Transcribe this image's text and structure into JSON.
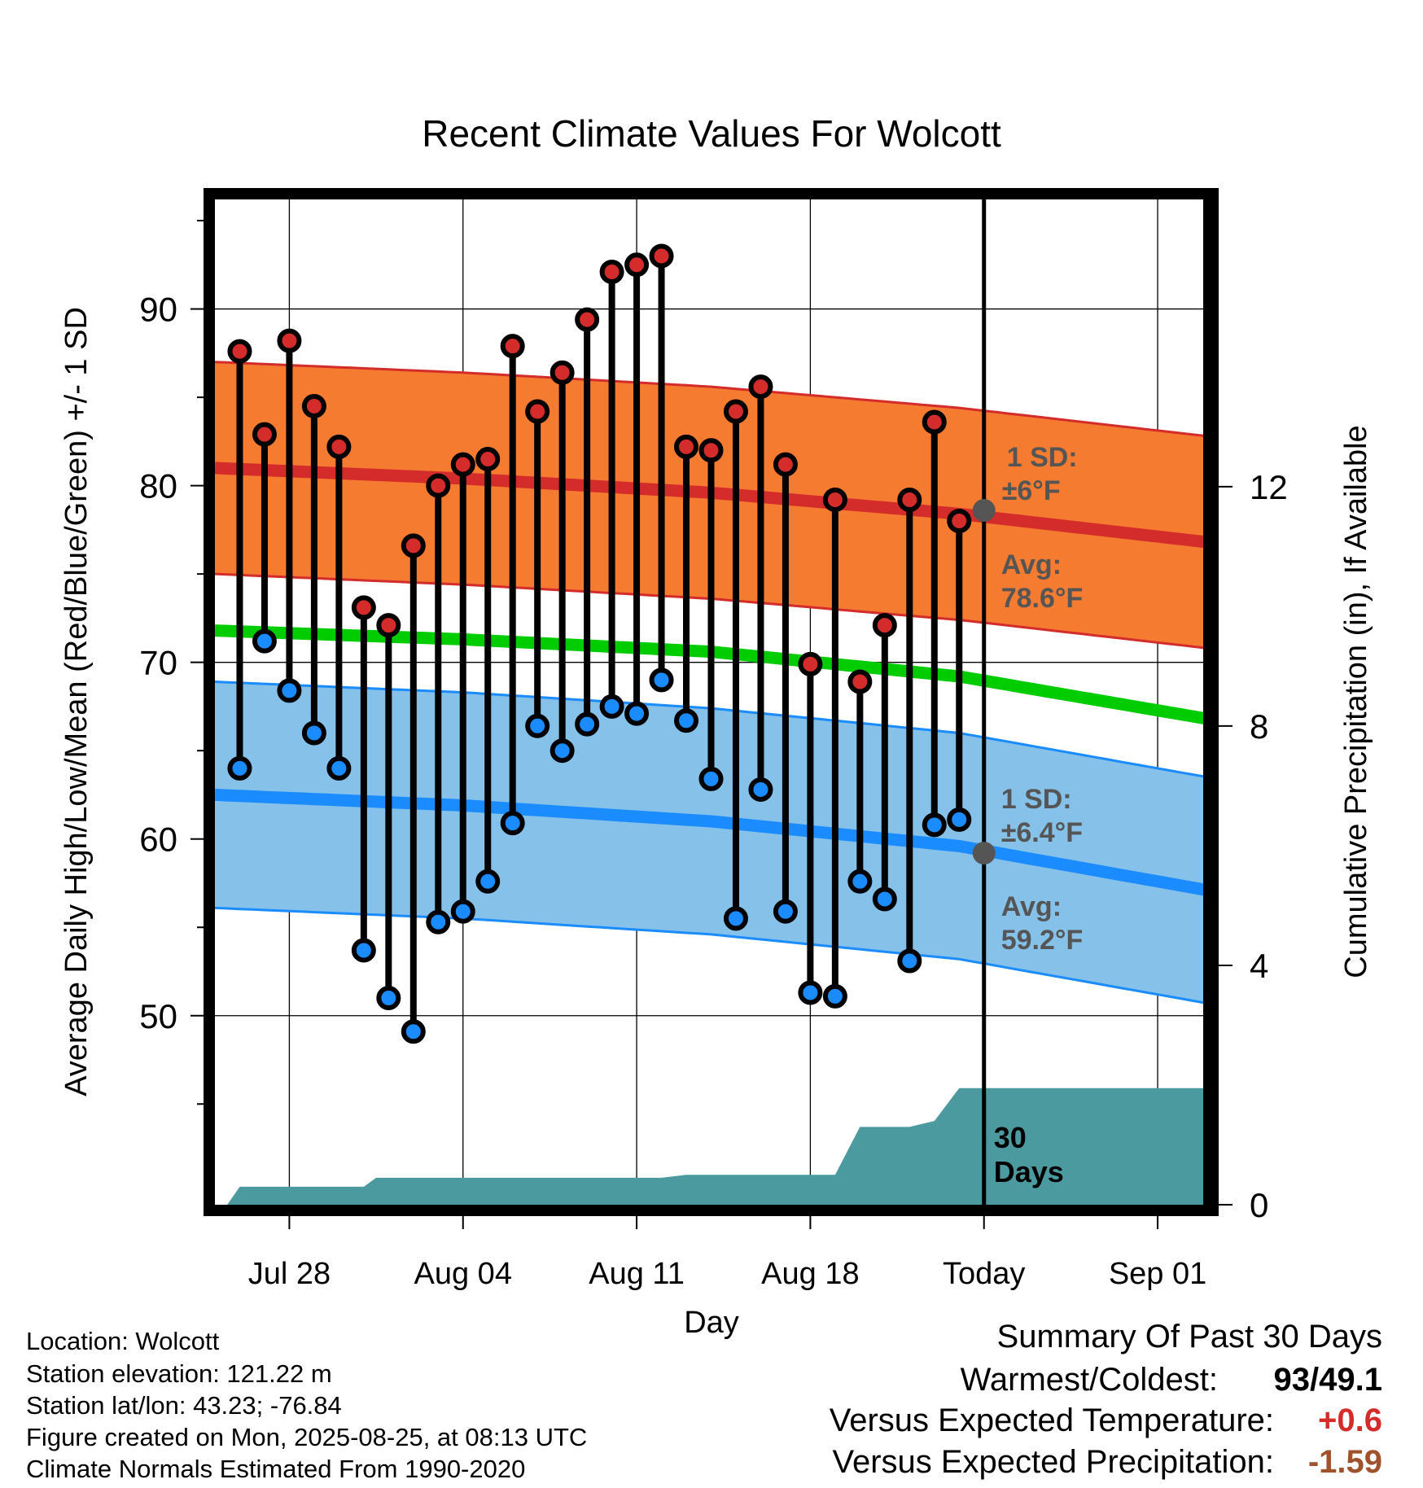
{
  "chart_data": {
    "type": "line",
    "title": "Recent Climate Values For Wolcott",
    "xlabel": "Day",
    "ylabel": "Average Daily High/Low/Mean (Red/Blue/Green) +/- 1 SD",
    "y2label": "Cumulative Precipitation (in), If Available",
    "ylim": [
      39.3,
      96.2
    ],
    "y2lim": [
      0,
      16.8
    ],
    "yticks": [
      50,
      60,
      70,
      80,
      90
    ],
    "y2ticks": [
      0,
      4,
      8,
      12
    ],
    "x_start": "Jul 25",
    "x_end": "Sep 03",
    "xticks": [
      {
        "label": "Jul 28",
        "day": 3
      },
      {
        "label": "Aug 04",
        "day": 10
      },
      {
        "label": "Aug 11",
        "day": 17
      },
      {
        "label": "Aug 18",
        "day": 24
      },
      {
        "label": "Today",
        "day": 31
      },
      {
        "label": "Sep 01",
        "day": 38
      }
    ],
    "today_day": 31,
    "days": [
      "Jul 26",
      "Jul 27",
      "Jul 28",
      "Jul 29",
      "Jul 30",
      "Jul 31",
      "Aug 01",
      "Aug 02",
      "Aug 03",
      "Aug 04",
      "Aug 05",
      "Aug 06",
      "Aug 07",
      "Aug 08",
      "Aug 09",
      "Aug 10",
      "Aug 11",
      "Aug 12",
      "Aug 13",
      "Aug 14",
      "Aug 15",
      "Aug 16",
      "Aug 17",
      "Aug 18",
      "Aug 19",
      "Aug 20",
      "Aug 21",
      "Aug 22",
      "Aug 23",
      "Aug 24"
    ],
    "daily_high": [
      87.6,
      82.9,
      88.2,
      84.5,
      82.2,
      73.1,
      72.1,
      76.6,
      80.0,
      81.2,
      81.5,
      87.9,
      84.2,
      86.4,
      89.4,
      92.1,
      92.5,
      93.0,
      82.2,
      82.0,
      84.2,
      85.6,
      81.2,
      69.9,
      79.2,
      68.9,
      72.1,
      79.2,
      83.6,
      78.0
    ],
    "daily_low": [
      64.0,
      71.2,
      68.4,
      66.0,
      64.0,
      53.7,
      51.0,
      49.1,
      55.3,
      55.9,
      57.6,
      60.9,
      66.4,
      65.0,
      66.5,
      67.5,
      67.1,
      69.0,
      66.7,
      63.4,
      55.5,
      62.8,
      55.9,
      51.3,
      51.1,
      57.6,
      56.6,
      53.1,
      60.8,
      61.1
    ],
    "normal_high": {
      "days": [
        0,
        10,
        20,
        30,
        40
      ],
      "values": [
        81.0,
        80.4,
        79.6,
        78.4,
        76.8
      ]
    },
    "normal_high_sd": 6,
    "normal_low": {
      "days": [
        0,
        10,
        20,
        30,
        40
      ],
      "values": [
        62.5,
        61.9,
        61.0,
        59.6,
        57.1
      ]
    },
    "normal_low_sd": 6.4,
    "normal_mean": {
      "days": [
        0,
        10,
        20,
        30,
        40
      ],
      "values": [
        71.8,
        71.3,
        70.6,
        69.2,
        66.8
      ]
    },
    "cumulative_precip": {
      "days": [
        0,
        0.5,
        1,
        6,
        6.5,
        18,
        19,
        25,
        26,
        28,
        29,
        30,
        40
      ],
      "values": [
        0,
        0,
        0.3,
        0.3,
        0.45,
        0.45,
        0.5,
        0.5,
        1.3,
        1.3,
        1.4,
        1.95,
        1.95
      ]
    },
    "high_sd_label": "1 SD:",
    "high_sd_value": "±6°F",
    "high_avg_label": "Avg:",
    "high_avg_value": "78.6°F",
    "low_sd_label": "1 SD:",
    "low_sd_value": "±6.4°F",
    "low_avg_label": "Avg:",
    "low_avg_value": "59.2°F",
    "today_high_avg": 78.6,
    "today_low_avg": 59.2,
    "precip_label_1": "30",
    "precip_label_2": "Days",
    "colors": {
      "high_band": "#f47b30",
      "high_line": "#d42b2b",
      "low_band": "#85c1e9",
      "low_line": "#1a8cff",
      "mean_line": "#00cc00",
      "precip": "#4a9aa0",
      "high_dot": "#d42b2b",
      "low_dot": "#1a8cff",
      "label_gray": "#555555",
      "today_dot": "#555555"
    }
  },
  "info": {
    "location": "Location: Wolcott",
    "elevation": "Station elevation: 121.22 m",
    "latlon": "Station lat/lon: 43.23; -76.84",
    "created": "Figure created on Mon, 2025-08-25, at 08:13 UTC",
    "normals": "Climate Normals Estimated From 1990-2020"
  },
  "summary": {
    "title": "Summary Of Past 30 Days",
    "warm_cold_label": "Warmest/Coldest:",
    "warm_cold_value": "93/49.1",
    "temp_label": "Versus Expected Temperature:",
    "temp_value": "+0.6",
    "temp_color": "#d42b2b",
    "precip_label": "Versus Expected Precipitation:",
    "precip_value": "-1.59",
    "precip_color": "#a0522d"
  }
}
